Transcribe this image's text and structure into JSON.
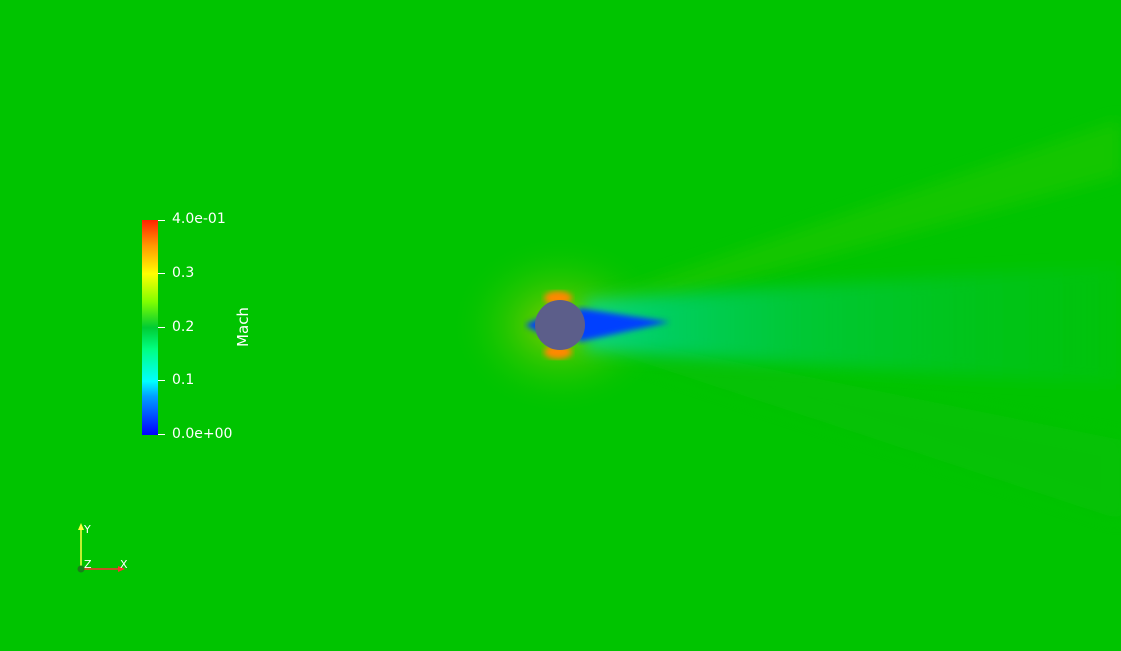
{
  "scalar_bar": {
    "title": "Mach",
    "ticks": [
      "4.0e-01",
      "0.3",
      "0.2",
      "0.1",
      "0.0e+00"
    ],
    "range": [
      0,
      0.4
    ]
  },
  "orientation_axes": {
    "x_label": "X",
    "y_label": "Y",
    "z_label": "Z"
  },
  "colors": {
    "background": "#00c400",
    "cylinder": "#5c5e8a",
    "x_axis": "#ff3030",
    "y_axis": "#ffff40",
    "z_axis": "#1a7f1a"
  }
}
